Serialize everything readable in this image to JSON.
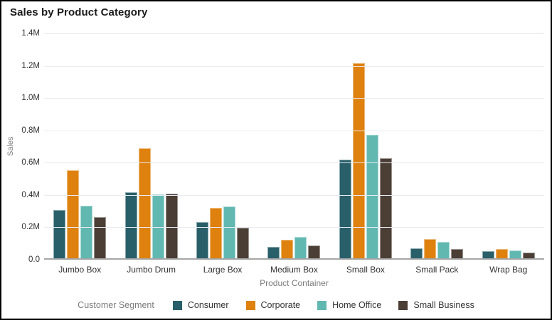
{
  "chart_data": {
    "type": "bar",
    "title": "Sales by Product Category",
    "xlabel": "Product Container",
    "ylabel": "Sales",
    "legend_title": "Customer Segment",
    "legend_position": "bottom",
    "grid": true,
    "value_unit": "M",
    "ylim": [
      0,
      1.4
    ],
    "yticks": [
      0,
      0.2,
      0.4,
      0.6,
      0.8,
      1.0,
      1.2,
      1.4
    ],
    "ytick_labels": [
      "0.0",
      "0.2M",
      "0.4M",
      "0.6M",
      "0.8M",
      "1.0M",
      "1.2M",
      "1.4M"
    ],
    "categories": [
      "Jumbo Box",
      "Jumbo Drum",
      "Large Box",
      "Medium Box",
      "Small Box",
      "Small Pack",
      "Wrap Bag"
    ],
    "series": [
      {
        "name": "Consumer",
        "color": "#285F69",
        "values": [
          0.3,
          0.41,
          0.225,
          0.07,
          0.61,
          0.06,
          0.045
        ]
      },
      {
        "name": "Corporate",
        "color": "#DE810E",
        "values": [
          0.545,
          0.68,
          0.31,
          0.115,
          1.205,
          0.12,
          0.055
        ]
      },
      {
        "name": "Home Office",
        "color": "#61B8B1",
        "values": [
          0.325,
          0.395,
          0.32,
          0.13,
          0.765,
          0.1,
          0.05
        ]
      },
      {
        "name": "Small Business",
        "color": "#4A3E35",
        "values": [
          0.255,
          0.4,
          0.19,
          0.08,
          0.62,
          0.055,
          0.035
        ]
      }
    ],
    "colors": {
      "gridline": "#E9EBF2",
      "axis_line": "#A5A5A5",
      "title_text": "#1A1A1A",
      "muted_text": "#7C7C7C",
      "tick_text": "#333333",
      "frame_border": "#000000",
      "background": "#FFFFFF"
    }
  }
}
